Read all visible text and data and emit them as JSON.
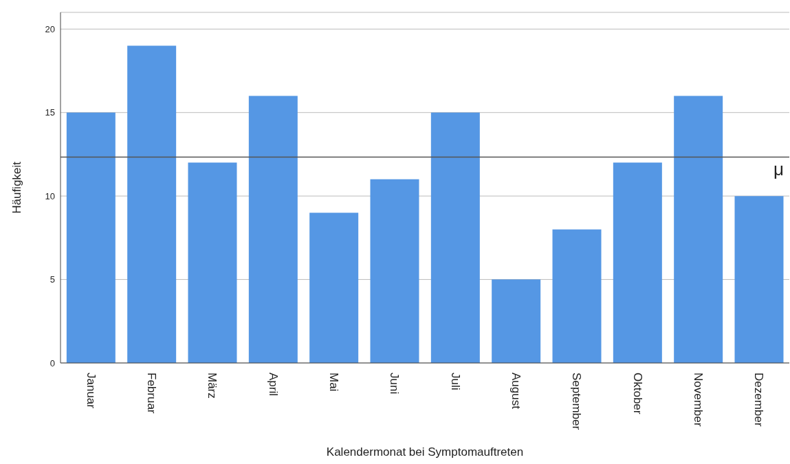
{
  "chart_data": {
    "type": "bar",
    "xlabel": "Kalendermonat bei Symptomauftreten",
    "ylabel": "Häufigkeit",
    "categories": [
      "Januar",
      "Februar",
      "März",
      "April",
      "Mai",
      "Juni",
      "Juli",
      "August",
      "September",
      "Oktober",
      "November",
      "Dezember"
    ],
    "values": [
      15,
      19,
      12,
      16,
      9,
      11,
      15,
      5,
      8,
      12,
      16,
      10
    ],
    "color": "#5597e4",
    "ylim": [
      0,
      21
    ],
    "yticks": [
      0,
      5,
      10,
      15,
      20
    ],
    "grid": "y",
    "ref_lines": [
      {
        "axis": "y",
        "value": 12.33,
        "label": "μ",
        "color": "#555555"
      }
    ]
  }
}
